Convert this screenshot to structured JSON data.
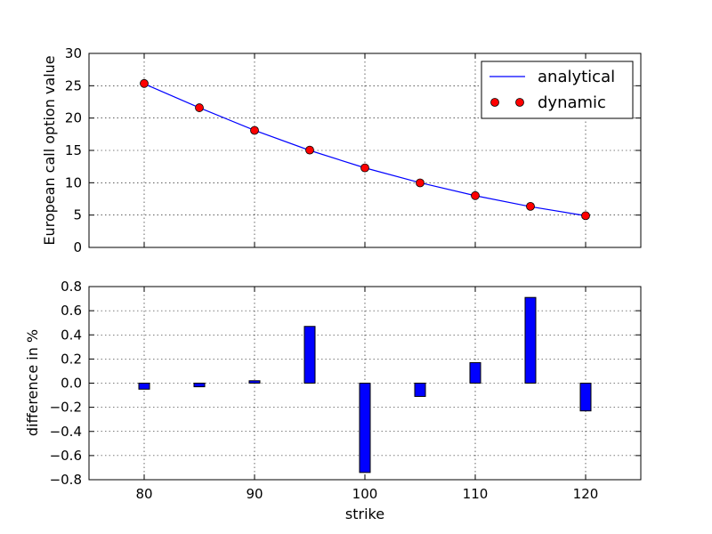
{
  "chart_data": [
    {
      "type": "line",
      "ylabel": "European call option value",
      "xlabel": "",
      "xlim": [
        75,
        125
      ],
      "ylim": [
        0,
        30
      ],
      "grid": true,
      "legend_position": "top-right",
      "x": [
        80,
        85,
        90,
        95,
        100,
        105,
        110,
        115,
        120
      ],
      "y_ticks": [
        0,
        5,
        10,
        15,
        20,
        25,
        30
      ],
      "y_tick_labels": [
        "0",
        "5",
        "10",
        "15",
        "20",
        "25",
        "30"
      ],
      "series": [
        {
          "name": "analytical",
          "style": "line",
          "color": "#0000ff",
          "values": [
            25.3,
            21.6,
            18.1,
            15.0,
            12.3,
            10.0,
            8.0,
            6.3,
            4.9
          ]
        },
        {
          "name": "dynamic",
          "style": "markers",
          "color": "#ff0000",
          "values": [
            25.35,
            21.6,
            18.1,
            15.05,
            12.3,
            9.98,
            8.01,
            6.35,
            4.9
          ]
        }
      ]
    },
    {
      "type": "bar",
      "xlabel": "strike",
      "ylabel": "difference in %",
      "xlim": [
        75,
        125
      ],
      "ylim": [
        -0.8,
        0.8
      ],
      "grid": true,
      "x": [
        80,
        85,
        90,
        95,
        100,
        105,
        110,
        115,
        120
      ],
      "values": [
        -0.05,
        -0.03,
        0.02,
        0.47,
        -0.74,
        -0.11,
        0.17,
        0.71,
        -0.23
      ],
      "bar_color": "#0000ff",
      "x_ticks": [
        80,
        90,
        100,
        110,
        120
      ],
      "x_tick_labels": [
        "80",
        "90",
        "100",
        "110",
        "120"
      ],
      "y_ticks": [
        -0.8,
        -0.6,
        -0.4,
        -0.2,
        0.0,
        0.2,
        0.4,
        0.6,
        0.8
      ],
      "y_tick_labels": [
        "−0.8",
        "−0.6",
        "−0.4",
        "−0.2",
        "0.0",
        "0.2",
        "0.4",
        "0.6",
        "0.8"
      ]
    }
  ]
}
